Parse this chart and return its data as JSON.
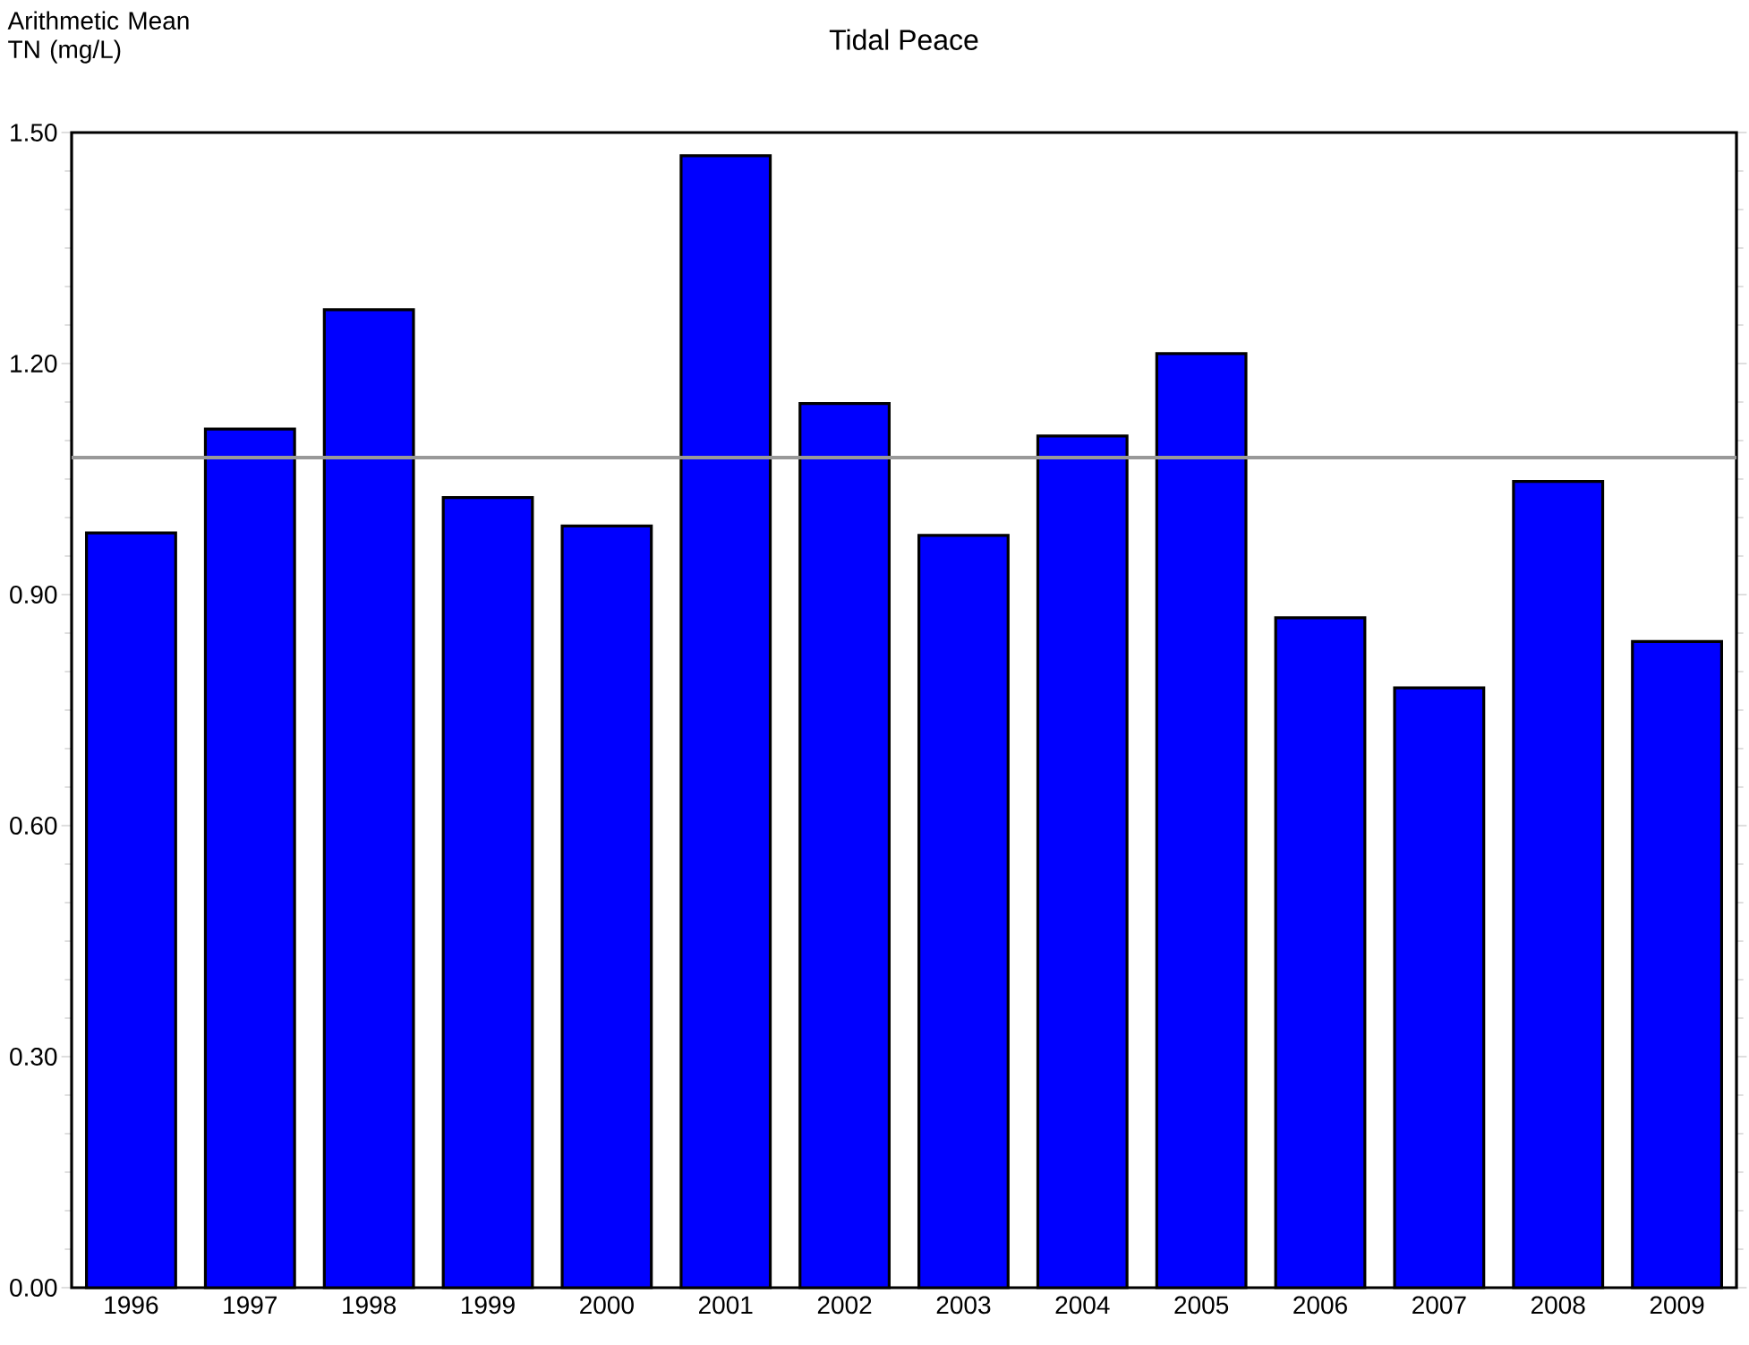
{
  "chart_data": {
    "type": "bar",
    "title": "Tidal Peace",
    "ylabel": "Arithmetic Mean TN (mg/L)",
    "categories": [
      "1996",
      "1997",
      "1998",
      "1999",
      "2000",
      "2001",
      "2002",
      "2003",
      "2004",
      "2005",
      "2006",
      "2007",
      "2008",
      "2009"
    ],
    "values": [
      0.98,
      1.115,
      1.27,
      1.026,
      0.989,
      1.47,
      1.148,
      0.977,
      1.106,
      1.213,
      0.87,
      0.779,
      1.047,
      0.839
    ],
    "color": "#0000ff",
    "ylim": [
      0,
      1.5
    ],
    "yticks": [
      {
        "value": 0,
        "label": "0.00"
      },
      {
        "value": 0.3,
        "label": "0.30"
      },
      {
        "value": 0.6,
        "label": "0.60"
      },
      {
        "value": 0.9,
        "label": "0.90"
      },
      {
        "value": 1.2,
        "label": "1.20"
      },
      {
        "value": 1.5,
        "label": "1.50"
      }
    ],
    "ref_lines": [
      {
        "axis": "y",
        "value": 1.078,
        "color": "#999999"
      }
    ]
  }
}
